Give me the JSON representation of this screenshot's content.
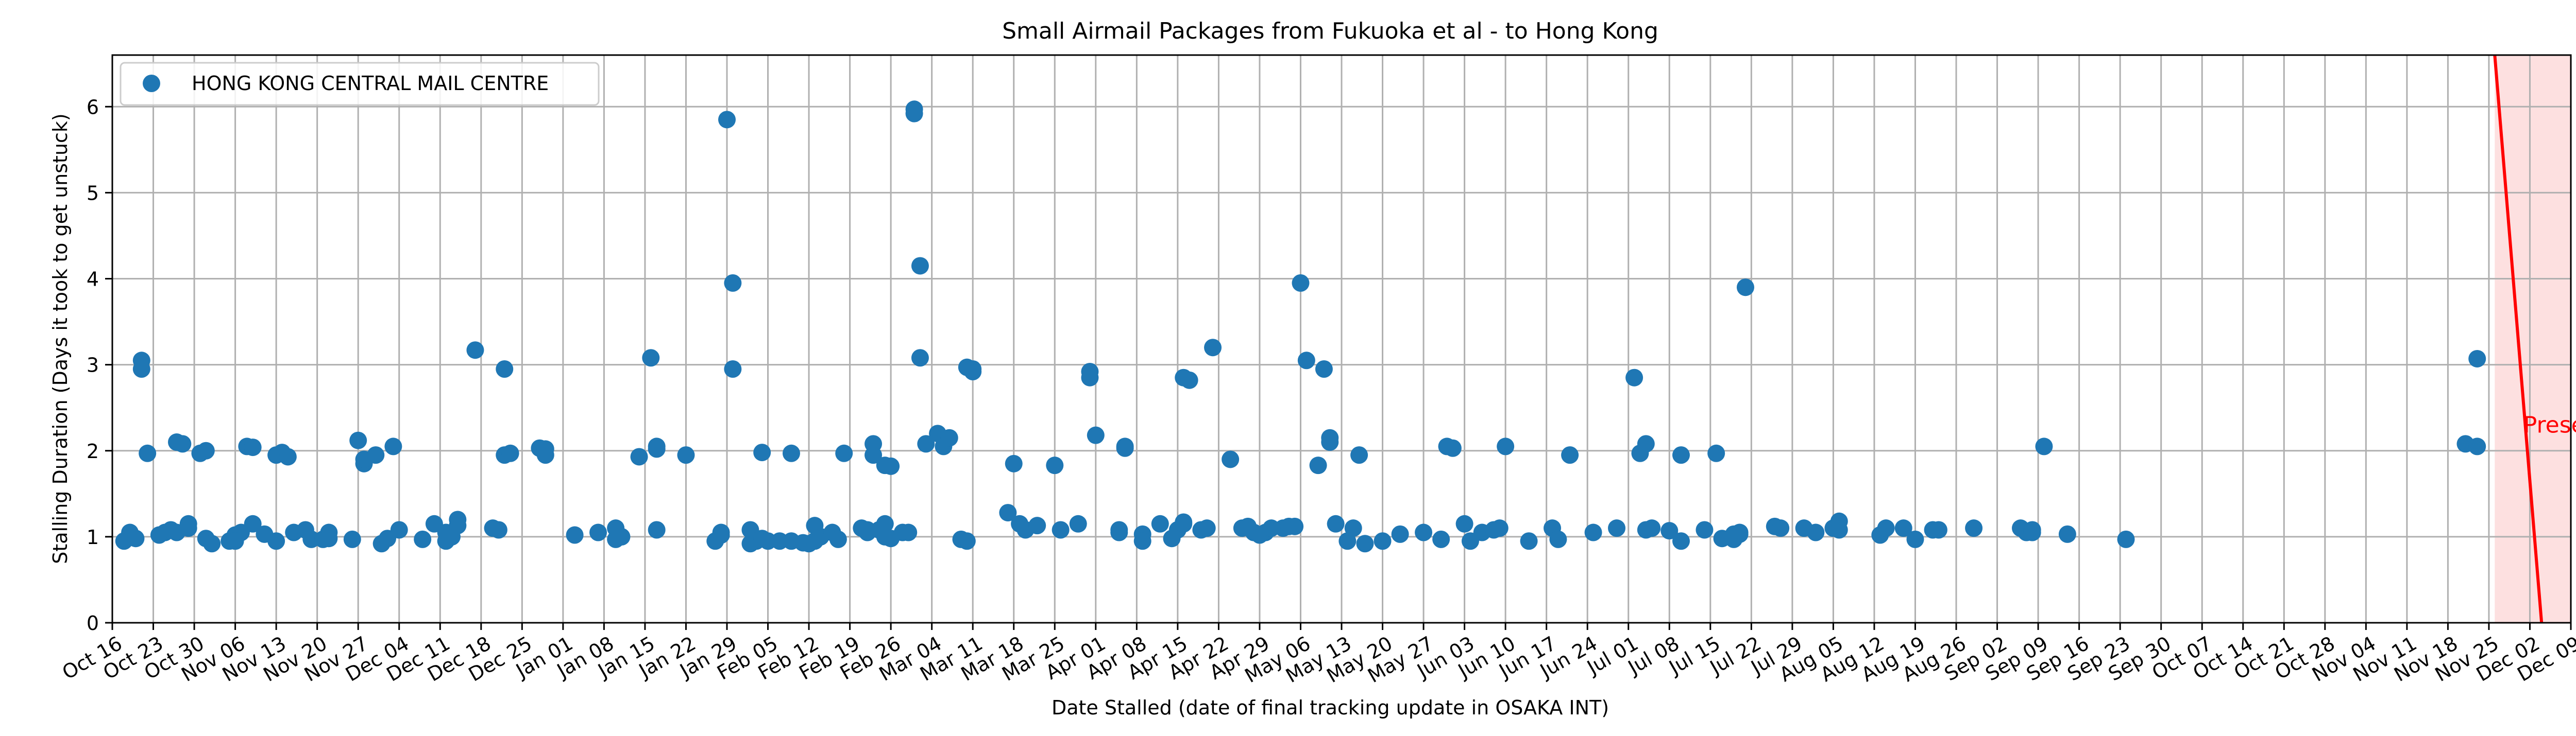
{
  "chart_data": {
    "type": "scatter",
    "title": "Small Airmail Packages from Fukuoka et al - to Hong Kong",
    "xlabel": "Date Stalled (date of final tracking update in OSAKA INT)",
    "ylabel": "Stalling Duration (Days it took to get unstuck)",
    "xlim": [
      "2023-10-16",
      "2024-12-09"
    ],
    "ylim": [
      0,
      6.6
    ],
    "x_ticks": [
      "2023-10-16",
      "2023-10-23",
      "2023-10-30",
      "2023-11-06",
      "2023-11-13",
      "2023-11-20",
      "2023-11-27",
      "2023-12-04",
      "2023-12-11",
      "2023-12-18",
      "2023-12-25",
      "2024-01-01",
      "2024-01-08",
      "2024-01-15",
      "2024-01-22",
      "2024-01-29",
      "2024-02-05",
      "2024-02-12",
      "2024-02-19",
      "2024-02-26",
      "2024-03-04",
      "2024-03-11",
      "2024-03-18",
      "2024-03-25",
      "2024-04-01",
      "2024-04-08",
      "2024-04-15",
      "2024-04-22",
      "2024-04-29",
      "2024-05-06",
      "2024-05-13",
      "2024-05-20",
      "2024-05-27",
      "2024-06-03",
      "2024-06-10",
      "2024-06-17",
      "2024-06-24",
      "2024-07-01",
      "2024-07-08",
      "2024-07-15",
      "2024-07-22",
      "2024-07-29",
      "2024-08-05",
      "2024-08-12",
      "2024-08-19",
      "2024-08-26",
      "2024-09-02",
      "2024-09-09",
      "2024-09-16",
      "2024-09-23",
      "2024-09-30",
      "2024-10-07",
      "2024-10-14",
      "2024-10-21",
      "2024-10-28",
      "2024-11-04",
      "2024-11-11",
      "2024-11-18",
      "2024-11-25",
      "2024-12-02",
      "2024-12-09"
    ],
    "x_tick_labels": [
      "Oct 16",
      "Oct 23",
      "Oct 30",
      "Nov 06",
      "Nov 13",
      "Nov 20",
      "Nov 27",
      "Dec 04",
      "Dec 11",
      "Dec 18",
      "Dec 25",
      "Jan 01",
      "Jan 08",
      "Jan 15",
      "Jan 22",
      "Jan 29",
      "Feb 05",
      "Feb 12",
      "Feb 19",
      "Feb 26",
      "Mar 04",
      "Mar 11",
      "Mar 18",
      "Mar 25",
      "Apr 01",
      "Apr 08",
      "Apr 15",
      "Apr 22",
      "Apr 29",
      "May 06",
      "May 13",
      "May 20",
      "May 27",
      "Jun 03",
      "Jun 10",
      "Jun 17",
      "Jun 24",
      "Jul 01",
      "Jul 08",
      "Jul 15",
      "Jul 22",
      "Jul 29",
      "Aug 05",
      "Aug 12",
      "Aug 19",
      "Aug 26",
      "Sep 02",
      "Sep 09",
      "Sep 16",
      "Sep 23",
      "Sep 30",
      "Oct 07",
      "Oct 14",
      "Oct 21",
      "Oct 28",
      "Nov 04",
      "Nov 11",
      "Nov 18",
      "Nov 25",
      "Dec 02",
      "Dec 09"
    ],
    "y_ticks": [
      0,
      1,
      2,
      3,
      4,
      5,
      6
    ],
    "grid": true,
    "legend_position": "top-left",
    "present": {
      "label": "Present",
      "date": "2024-11-30",
      "line_top": [
        "2024-11-26",
        6.6
      ],
      "line_bottom": [
        "2024-12-04",
        0
      ],
      "line_color": "#ff0000",
      "shade_color": "#fde0e0",
      "text_color": "#ff0000"
    },
    "series": [
      {
        "name": "HONG KONG CENTRAL MAIL CENTRE",
        "color": "#1f77b4",
        "points": [
          [
            "2023-10-18",
            0.95
          ],
          [
            "2023-10-19",
            1.05
          ],
          [
            "2023-10-19",
            1.0
          ],
          [
            "2023-10-20",
            0.98
          ],
          [
            "2023-10-21",
            2.95
          ],
          [
            "2023-10-21",
            3.05
          ],
          [
            "2023-10-22",
            1.97
          ],
          [
            "2023-10-24",
            1.02
          ],
          [
            "2023-10-25",
            1.05
          ],
          [
            "2023-10-26",
            1.08
          ],
          [
            "2023-10-27",
            1.05
          ],
          [
            "2023-10-27",
            2.1
          ],
          [
            "2023-10-28",
            2.08
          ],
          [
            "2023-10-29",
            1.1
          ],
          [
            "2023-10-29",
            1.15
          ],
          [
            "2023-10-31",
            1.97
          ],
          [
            "2023-11-01",
            2.0
          ],
          [
            "2023-11-01",
            0.98
          ],
          [
            "2023-11-02",
            0.92
          ],
          [
            "2023-11-05",
            0.95
          ],
          [
            "2023-11-06",
            1.02
          ],
          [
            "2023-11-07",
            1.05
          ],
          [
            "2023-11-06",
            0.95
          ],
          [
            "2023-11-08",
            2.05
          ],
          [
            "2023-11-09",
            2.04
          ],
          [
            "2023-11-09",
            1.15
          ],
          [
            "2023-11-11",
            1.03
          ],
          [
            "2023-11-13",
            0.95
          ],
          [
            "2023-11-13",
            1.95
          ],
          [
            "2023-11-14",
            1.98
          ],
          [
            "2023-11-15",
            1.93
          ],
          [
            "2023-11-16",
            1.05
          ],
          [
            "2023-11-18",
            1.08
          ],
          [
            "2023-11-19",
            0.97
          ],
          [
            "2023-11-21",
            0.97
          ],
          [
            "2023-11-22",
            1.05
          ],
          [
            "2023-11-22",
            0.98
          ],
          [
            "2023-11-26",
            0.97
          ],
          [
            "2023-11-27",
            2.12
          ],
          [
            "2023-11-28",
            1.85
          ],
          [
            "2023-11-28",
            1.9
          ],
          [
            "2023-11-30",
            1.95
          ],
          [
            "2023-12-01",
            0.92
          ],
          [
            "2023-12-02",
            0.98
          ],
          [
            "2023-12-03",
            2.05
          ],
          [
            "2023-12-04",
            1.08
          ],
          [
            "2023-12-08",
            0.97
          ],
          [
            "2023-12-10",
            1.15
          ],
          [
            "2023-12-12",
            0.95
          ],
          [
            "2023-12-13",
            1.0
          ],
          [
            "2023-12-14",
            1.2
          ],
          [
            "2023-12-14",
            1.13
          ],
          [
            "2023-12-12",
            1.05
          ],
          [
            "2023-12-17",
            3.17
          ],
          [
            "2023-12-20",
            1.1
          ],
          [
            "2023-12-21",
            1.08
          ],
          [
            "2023-12-22",
            2.95
          ],
          [
            "2023-12-22",
            1.95
          ],
          [
            "2023-12-23",
            1.97
          ],
          [
            "2023-12-28",
            2.03
          ],
          [
            "2023-12-29",
            1.95
          ],
          [
            "2023-12-29",
            2.02
          ],
          [
            "2024-01-03",
            1.02
          ],
          [
            "2024-01-07",
            1.05
          ],
          [
            "2024-01-10",
            1.1
          ],
          [
            "2024-01-10",
            0.97
          ],
          [
            "2024-01-11",
            1.0
          ],
          [
            "2024-01-14",
            1.93
          ],
          [
            "2024-01-16",
            3.08
          ],
          [
            "2024-01-17",
            2.02
          ],
          [
            "2024-01-17",
            2.05
          ],
          [
            "2024-01-17",
            1.08
          ],
          [
            "2024-01-22",
            1.95
          ],
          [
            "2024-01-27",
            0.95
          ],
          [
            "2024-01-28",
            1.02
          ],
          [
            "2024-01-28",
            1.05
          ],
          [
            "2024-01-29",
            5.85
          ],
          [
            "2024-01-30",
            3.95
          ],
          [
            "2024-01-30",
            2.95
          ],
          [
            "2024-02-02",
            1.08
          ],
          [
            "2024-02-02",
            0.92
          ],
          [
            "2024-02-03",
            0.95
          ],
          [
            "2024-02-04",
            0.98
          ],
          [
            "2024-02-04",
            1.98
          ],
          [
            "2024-02-05",
            0.95
          ],
          [
            "2024-02-07",
            0.95
          ],
          [
            "2024-02-09",
            0.95
          ],
          [
            "2024-02-09",
            1.97
          ],
          [
            "2024-02-11",
            0.93
          ],
          [
            "2024-02-12",
            0.92
          ],
          [
            "2024-02-13",
            0.95
          ],
          [
            "2024-02-13",
            1.13
          ],
          [
            "2024-02-14",
            1.0
          ],
          [
            "2024-02-16",
            1.05
          ],
          [
            "2024-02-17",
            0.97
          ],
          [
            "2024-02-18",
            1.97
          ],
          [
            "2024-02-21",
            1.1
          ],
          [
            "2024-02-22",
            1.08
          ],
          [
            "2024-02-22",
            1.05
          ],
          [
            "2024-02-23",
            1.95
          ],
          [
            "2024-02-23",
            2.08
          ],
          [
            "2024-02-24",
            1.08
          ],
          [
            "2024-02-25",
            1.15
          ],
          [
            "2024-02-25",
            1.0
          ],
          [
            "2024-02-25",
            1.83
          ],
          [
            "2024-02-26",
            1.82
          ],
          [
            "2024-02-26",
            0.98
          ],
          [
            "2024-02-28",
            1.05
          ],
          [
            "2024-02-29",
            1.05
          ],
          [
            "2024-03-01",
            5.97
          ],
          [
            "2024-03-01",
            5.92
          ],
          [
            "2024-03-02",
            4.15
          ],
          [
            "2024-03-02",
            3.08
          ],
          [
            "2024-03-03",
            2.08
          ],
          [
            "2024-03-05",
            2.2
          ],
          [
            "2024-03-06",
            2.05
          ],
          [
            "2024-03-07",
            2.15
          ],
          [
            "2024-03-09",
            0.97
          ],
          [
            "2024-03-10",
            0.95
          ],
          [
            "2024-03-10",
            2.97
          ],
          [
            "2024-03-11",
            2.92
          ],
          [
            "2024-03-11",
            2.95
          ],
          [
            "2024-03-17",
            1.28
          ],
          [
            "2024-03-18",
            1.85
          ],
          [
            "2024-03-19",
            1.15
          ],
          [
            "2024-03-20",
            1.08
          ],
          [
            "2024-03-22",
            1.13
          ],
          [
            "2024-03-25",
            1.83
          ],
          [
            "2024-03-26",
            1.08
          ],
          [
            "2024-03-29",
            1.15
          ],
          [
            "2024-03-31",
            2.92
          ],
          [
            "2024-03-31",
            2.85
          ],
          [
            "2024-04-01",
            2.18
          ],
          [
            "2024-04-05",
            1.05
          ],
          [
            "2024-04-05",
            1.08
          ],
          [
            "2024-04-06",
            2.05
          ],
          [
            "2024-04-06",
            2.03
          ],
          [
            "2024-04-09",
            1.03
          ],
          [
            "2024-04-09",
            0.95
          ],
          [
            "2024-04-12",
            1.15
          ],
          [
            "2024-04-14",
            0.98
          ],
          [
            "2024-04-15",
            1.08
          ],
          [
            "2024-04-16",
            1.15
          ],
          [
            "2024-04-16",
            1.17
          ],
          [
            "2024-04-16",
            2.85
          ],
          [
            "2024-04-17",
            2.82
          ],
          [
            "2024-04-19",
            1.08
          ],
          [
            "2024-04-20",
            1.1
          ],
          [
            "2024-04-21",
            3.2
          ],
          [
            "2024-04-24",
            1.9
          ],
          [
            "2024-04-26",
            1.1
          ],
          [
            "2024-04-27",
            1.12
          ],
          [
            "2024-04-28",
            1.05
          ],
          [
            "2024-04-29",
            1.02
          ],
          [
            "2024-04-30",
            1.05
          ],
          [
            "2024-05-01",
            1.1
          ],
          [
            "2024-05-03",
            1.1
          ],
          [
            "2024-05-04",
            1.12
          ],
          [
            "2024-05-05",
            1.12
          ],
          [
            "2024-05-06",
            3.95
          ],
          [
            "2024-05-07",
            3.05
          ],
          [
            "2024-05-09",
            1.83
          ],
          [
            "2024-05-10",
            2.95
          ],
          [
            "2024-05-11",
            2.15
          ],
          [
            "2024-05-11",
            2.1
          ],
          [
            "2024-05-12",
            1.15
          ],
          [
            "2024-05-14",
            0.95
          ],
          [
            "2024-05-15",
            1.1
          ],
          [
            "2024-05-16",
            1.95
          ],
          [
            "2024-05-17",
            0.92
          ],
          [
            "2024-05-20",
            0.95
          ],
          [
            "2024-05-23",
            1.03
          ],
          [
            "2024-05-27",
            1.05
          ],
          [
            "2024-05-30",
            0.97
          ],
          [
            "2024-05-31",
            2.05
          ],
          [
            "2024-06-01",
            2.03
          ],
          [
            "2024-06-03",
            1.15
          ],
          [
            "2024-06-04",
            0.95
          ],
          [
            "2024-06-06",
            1.05
          ],
          [
            "2024-06-08",
            1.08
          ],
          [
            "2024-06-09",
            1.1
          ],
          [
            "2024-06-10",
            2.05
          ],
          [
            "2024-06-14",
            0.95
          ],
          [
            "2024-06-18",
            1.1
          ],
          [
            "2024-06-19",
            0.97
          ],
          [
            "2024-06-21",
            1.95
          ],
          [
            "2024-06-25",
            1.05
          ],
          [
            "2024-06-29",
            1.1
          ],
          [
            "2024-07-02",
            2.85
          ],
          [
            "2024-07-03",
            1.97
          ],
          [
            "2024-07-04",
            2.08
          ],
          [
            "2024-07-04",
            1.08
          ],
          [
            "2024-07-05",
            1.1
          ],
          [
            "2024-07-08",
            1.07
          ],
          [
            "2024-07-10",
            0.95
          ],
          [
            "2024-07-10",
            1.95
          ],
          [
            "2024-07-16",
            1.97
          ],
          [
            "2024-07-14",
            1.08
          ],
          [
            "2024-07-17",
            0.98
          ],
          [
            "2024-07-19",
            0.97
          ],
          [
            "2024-07-19",
            1.03
          ],
          [
            "2024-07-20",
            1.05
          ],
          [
            "2024-07-20",
            1.03
          ],
          [
            "2024-07-21",
            3.9
          ],
          [
            "2024-07-26",
            1.12
          ],
          [
            "2024-07-27",
            1.1
          ],
          [
            "2024-07-31",
            1.1
          ],
          [
            "2024-08-02",
            1.05
          ],
          [
            "2024-08-05",
            1.1
          ],
          [
            "2024-08-06",
            1.08
          ],
          [
            "2024-08-06",
            1.18
          ],
          [
            "2024-08-13",
            1.02
          ],
          [
            "2024-08-14",
            1.1
          ],
          [
            "2024-08-17",
            1.1
          ],
          [
            "2024-08-19",
            0.97
          ],
          [
            "2024-08-22",
            1.08
          ],
          [
            "2024-08-23",
            1.08
          ],
          [
            "2024-08-29",
            1.1
          ],
          [
            "2024-09-06",
            1.1
          ],
          [
            "2024-09-07",
            1.05
          ],
          [
            "2024-09-08",
            1.08
          ],
          [
            "2024-09-08",
            1.05
          ],
          [
            "2024-09-10",
            2.05
          ],
          [
            "2024-09-14",
            1.03
          ],
          [
            "2024-09-24",
            0.97
          ],
          [
            "2024-11-21",
            2.08
          ],
          [
            "2024-11-23",
            3.07
          ],
          [
            "2024-11-23",
            2.05
          ]
        ]
      }
    ]
  }
}
